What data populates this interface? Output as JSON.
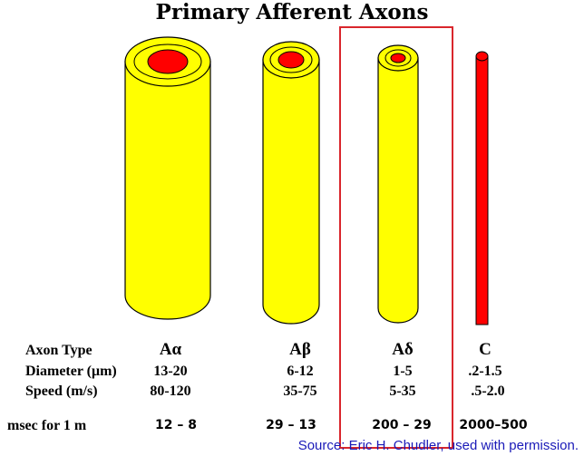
{
  "title": "Primary Afferent Axons",
  "row_labels": {
    "type": "Axon Type",
    "diameter": "Diameter (μm)",
    "speed": "Speed (m/s)",
    "msec": "msec for 1 m"
  },
  "axons": [
    {
      "type": "Aα",
      "diameter": "13-20",
      "speed": "80-120",
      "msec": "12 – 8"
    },
    {
      "type": "Aβ",
      "diameter": "6-12",
      "speed": "35-75",
      "msec": "29 – 13"
    },
    {
      "type": "Aδ",
      "diameter": "1-5",
      "speed": "5-35",
      "msec": "200 – 29"
    },
    {
      "type": "C",
      "diameter": ".2-1.5",
      "speed": ".5-2.0",
      "msec": "2000–500"
    }
  ],
  "highlighted_axon": "Aδ",
  "source": "Source: Eric H. Chudler, used with permission.",
  "colors": {
    "myelin": "#ffff00",
    "axon_core": "#ff0000",
    "highlight_box": "#d9262c",
    "source_text": "#1a1ab8"
  }
}
